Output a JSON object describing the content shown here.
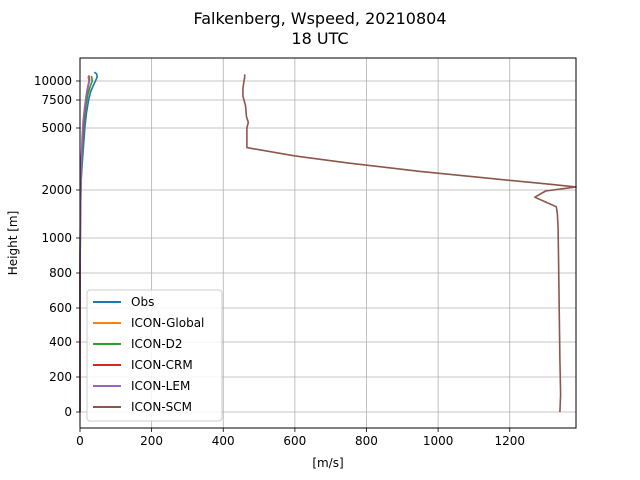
{
  "chart_data": {
    "type": "line",
    "title_line1": "Falkenberg, Wspeed, 20210804",
    "title_line2": "18 UTC",
    "xlabel": "[m/s]",
    "ylabel": "Height [m]",
    "xlim": [
      0,
      1385
    ],
    "x_ticks": [
      0,
      200,
      400,
      600,
      800,
      1000,
      1200
    ],
    "x_tick_labels": [
      "0",
      "200",
      "400",
      "600",
      "800",
      "1000",
      "1200"
    ],
    "y_ticks": [
      {
        "label": "0"
      },
      {
        "label": "200"
      },
      {
        "label": "400"
      },
      {
        "label": "600"
      },
      {
        "label": "800"
      },
      {
        "label": "1000"
      },
      {
        "label": "2000"
      },
      {
        "label": "5000"
      },
      {
        "label": "7500"
      },
      {
        "label": "10000"
      }
    ],
    "grid": true,
    "legend_position": "lower-left",
    "series": [
      {
        "name": "Obs",
        "color": "#1f77b4",
        "points": [
          [
            0,
            0
          ],
          [
            0,
            600
          ],
          [
            1,
            1400
          ],
          [
            3,
            2400
          ],
          [
            6,
            3200
          ],
          [
            10,
            4200
          ],
          [
            14,
            5200
          ],
          [
            18,
            6300
          ],
          [
            24,
            7500
          ],
          [
            30,
            8600
          ],
          [
            38,
            9500
          ],
          [
            44,
            10100
          ],
          [
            48,
            10600
          ],
          [
            46,
            11000
          ],
          [
            40,
            11200
          ]
        ]
      },
      {
        "name": "ICON-Global",
        "color": "#ff7f0e",
        "points": [
          [
            0,
            0
          ],
          [
            0,
            800
          ],
          [
            1,
            1600
          ],
          [
            3,
            2600
          ],
          [
            5,
            3600
          ],
          [
            8,
            4600
          ],
          [
            11,
            5800
          ],
          [
            15,
            7000
          ],
          [
            19,
            8200
          ],
          [
            23,
            9300
          ],
          [
            27,
            10200
          ],
          [
            25,
            10800
          ]
        ]
      },
      {
        "name": "ICON-D2",
        "color": "#2ca02c",
        "points": [
          [
            0,
            0
          ],
          [
            0,
            800
          ],
          [
            1,
            1600
          ],
          [
            3,
            2600
          ],
          [
            6,
            3600
          ],
          [
            9,
            4700
          ],
          [
            13,
            5900
          ],
          [
            17,
            7100
          ],
          [
            22,
            8200
          ],
          [
            28,
            9200
          ],
          [
            34,
            10000
          ],
          [
            32,
            10700
          ]
        ]
      },
      {
        "name": "ICON-CRM",
        "color": "#d62728",
        "points": [
          [
            0,
            0
          ],
          [
            0,
            700
          ],
          [
            1,
            1500
          ],
          [
            2,
            2500
          ],
          [
            4,
            3500
          ],
          [
            7,
            4500
          ],
          [
            10,
            5700
          ],
          [
            14,
            6900
          ],
          [
            18,
            8100
          ],
          [
            22,
            9200
          ],
          [
            26,
            10100
          ],
          [
            24,
            10700
          ]
        ]
      },
      {
        "name": "ICON-LEM",
        "color": "#9467bd",
        "points": [
          [
            0,
            0
          ],
          [
            0,
            700
          ],
          [
            1,
            1500
          ],
          [
            2,
            2500
          ],
          [
            4,
            3500
          ],
          [
            6,
            4500
          ],
          [
            9,
            5700
          ],
          [
            13,
            6900
          ],
          [
            17,
            8000
          ],
          [
            21,
            9100
          ],
          [
            25,
            10000
          ],
          [
            23,
            10600
          ]
        ]
      },
      {
        "name": "ICON-SCM",
        "color": "#8c564b",
        "points": [
          [
            1340,
            0
          ],
          [
            1342,
            100
          ],
          [
            1340,
            300
          ],
          [
            1338,
            600
          ],
          [
            1336,
            900
          ],
          [
            1335,
            1200
          ],
          [
            1333,
            1500
          ],
          [
            1330,
            1650
          ],
          [
            1300,
            1750
          ],
          [
            1270,
            1850
          ],
          [
            1300,
            1980
          ],
          [
            1385,
            2150
          ],
          [
            1300,
            2300
          ],
          [
            1150,
            2550
          ],
          [
            950,
            2900
          ],
          [
            750,
            3300
          ],
          [
            600,
            3650
          ],
          [
            466,
            4050
          ],
          [
            466,
            5000
          ],
          [
            470,
            5500
          ],
          [
            465,
            6000
          ],
          [
            462,
            7000
          ],
          [
            455,
            8000
          ],
          [
            455,
            9000
          ],
          [
            458,
            10000
          ],
          [
            460,
            10500
          ],
          [
            460,
            10900
          ]
        ]
      }
    ]
  }
}
